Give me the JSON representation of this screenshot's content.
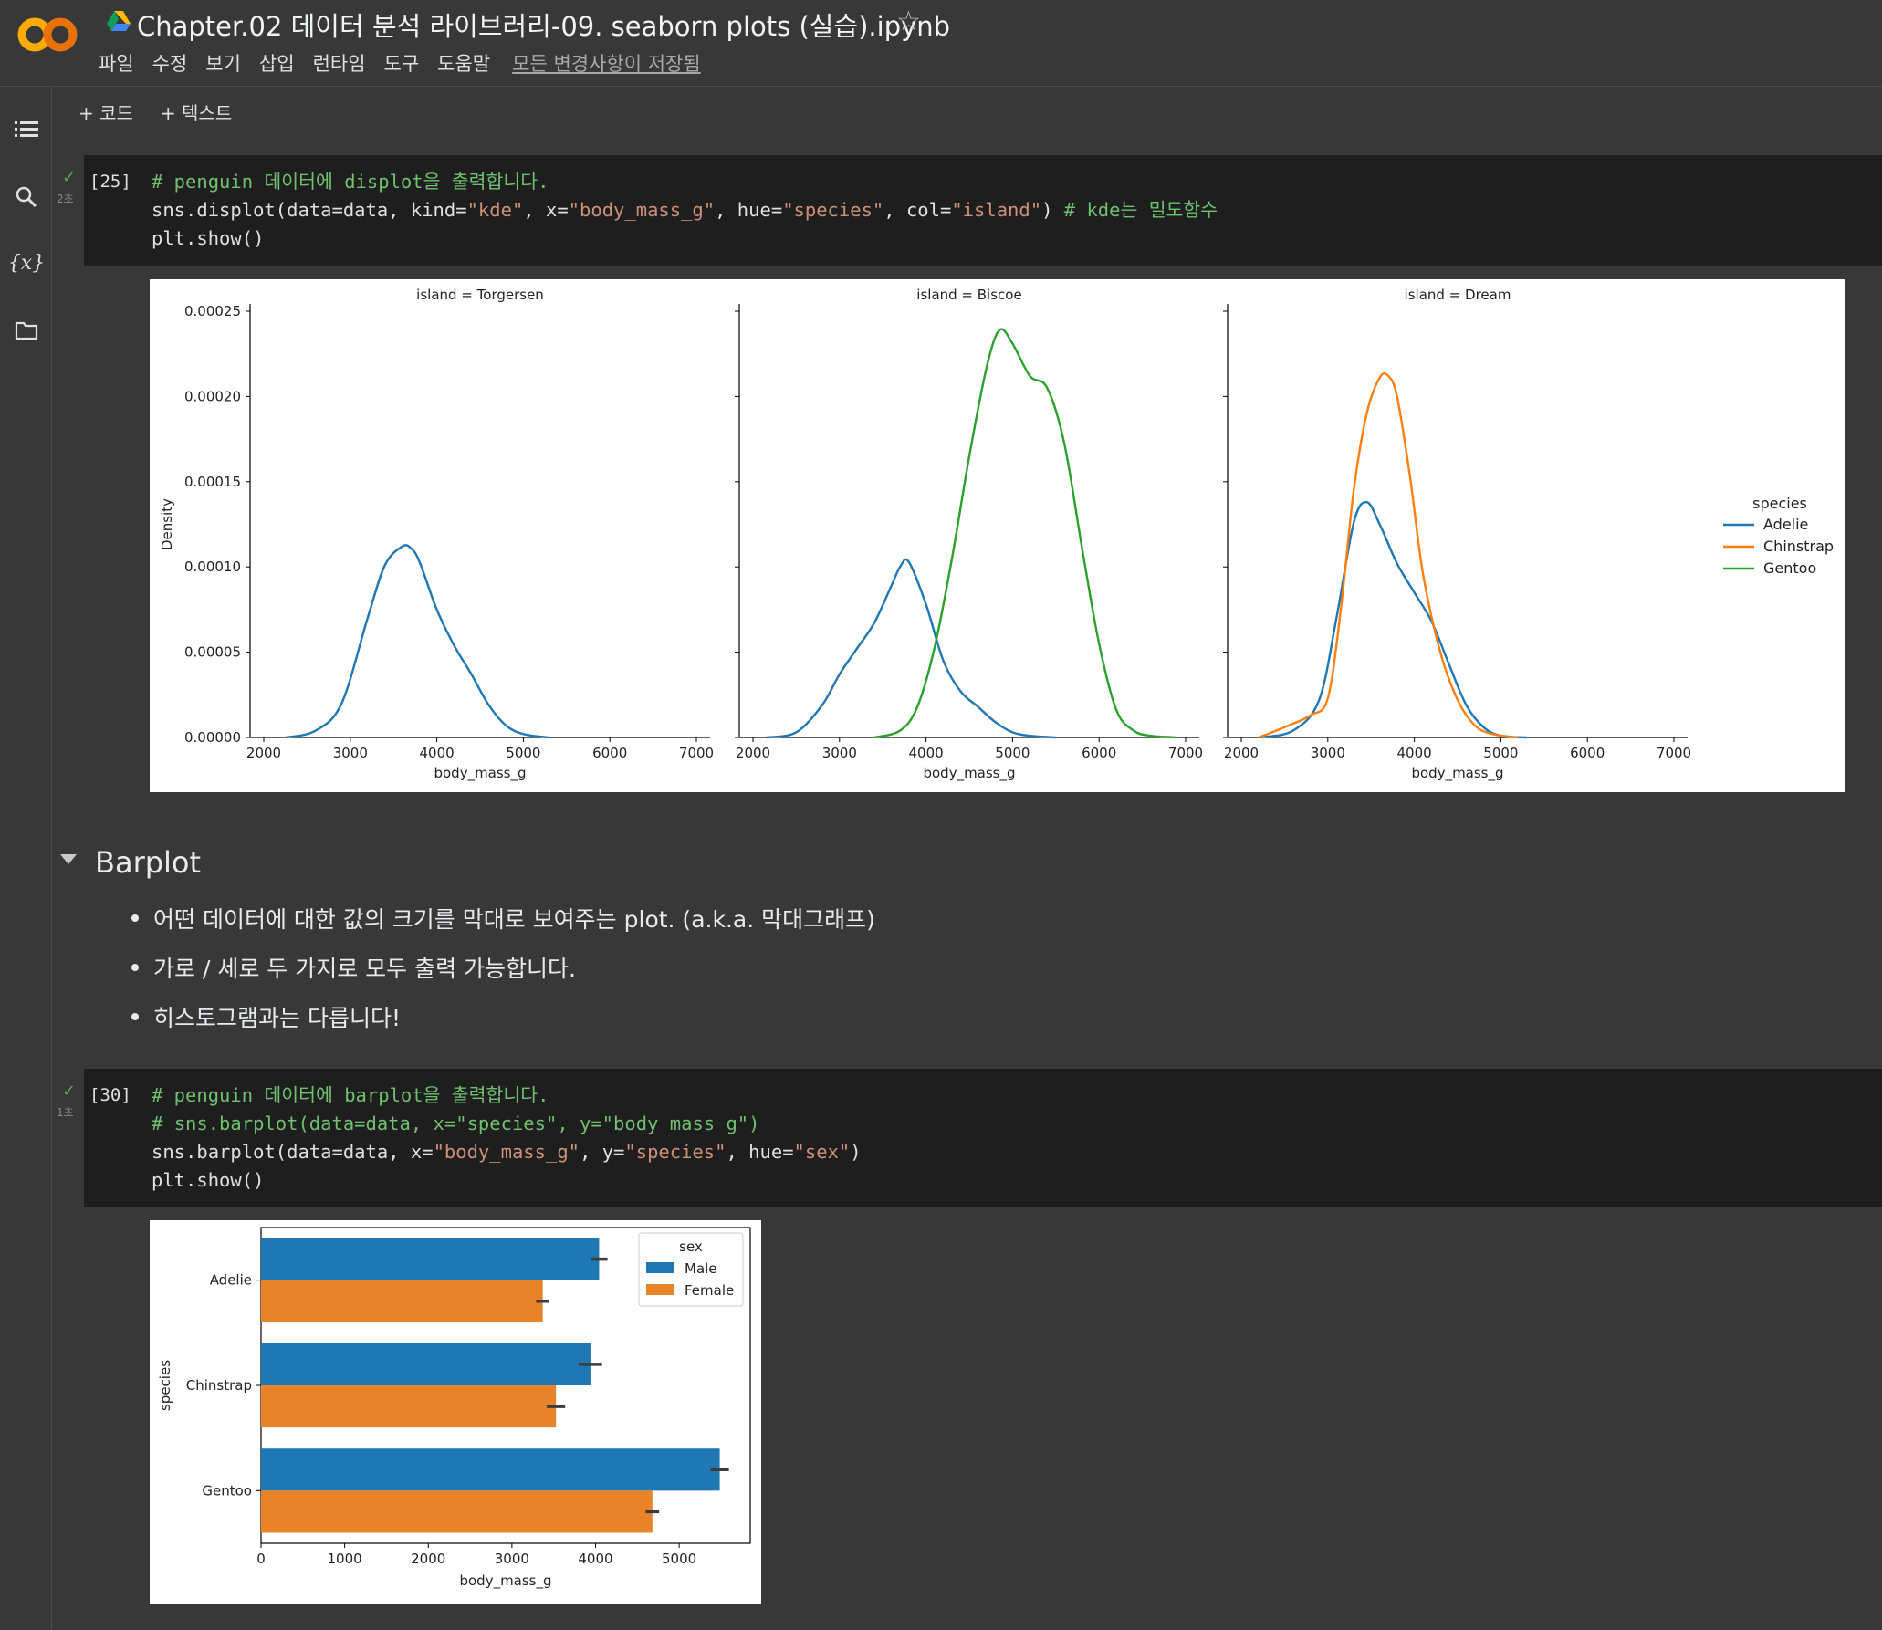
{
  "header": {
    "title": "Chapter.02 데이터 분석 라이브러리-09. seaborn plots (실습).ipynb",
    "menu": [
      "파일",
      "수정",
      "보기",
      "삽입",
      "런타임",
      "도구",
      "도움말"
    ],
    "saved_status": "모든 변경사항이 저장됨"
  },
  "toolbar": {
    "add_code": "+ 코드",
    "add_text": "+ 텍스트"
  },
  "cells": [
    {
      "exec_count": "[25]",
      "runtime": "2초",
      "lines": [
        "# penguin 데이터에 displot을 출력합니다.",
        "sns.displot(data=data, kind=\"kde\", x=\"body_mass_g\", hue=\"species\", col=\"island\") # kde는 밀도함수",
        "plt.show()"
      ]
    },
    {
      "exec_count": "[30]",
      "runtime": "1초",
      "lines": [
        "# penguin 데이터에 barplot을 출력합니다.",
        "# sns.barplot(data=data, x=\"species\", y=\"body_mass_g\")",
        "sns.barplot(data=data, x=\"body_mass_g\", y=\"species\", hue=\"sex\")",
        "plt.show()"
      ]
    }
  ],
  "section": {
    "title": "Barplot",
    "bullets": [
      "어떤 데이터에 대한 값의 크기를 막대로 보여주는 plot. (a.k.a. 막대그래프)",
      "가로 / 세로 두 가지로 모두 출력 가능합니다.",
      "히스토그램과는 다릅니다!"
    ]
  },
  "chart_data": [
    {
      "type": "line",
      "subplot_titles": [
        "island = Torgersen",
        "island = Biscoe",
        "island = Dream"
      ],
      "xlabel": "body_mass_g",
      "ylabel": "Density",
      "xlim": [
        2000,
        7000
      ],
      "ylim": [
        0,
        0.00025
      ],
      "xticks": [
        "2000",
        "3000",
        "4000",
        "5000",
        "6000",
        "7000"
      ],
      "yticks": [
        "0.00000",
        "0.00005",
        "0.00010",
        "0.00015",
        "0.00020",
        "0.00025"
      ],
      "legend": {
        "title": "species",
        "position": "right",
        "entries": [
          "Adelie",
          "Chinstrap",
          "Gentoo"
        ]
      },
      "colors": {
        "Adelie": "#1f77b4",
        "Chinstrap": "#ff7f0e",
        "Gentoo": "#2ca02c"
      },
      "panels": [
        {
          "island": "Torgersen",
          "series": [
            {
              "name": "Adelie",
              "x": [
                2250,
                2600,
                2900,
                3200,
                3400,
                3600,
                3700,
                3800,
                4000,
                4200,
                4400,
                4600,
                4800,
                5000,
                5300
              ],
              "y": [
                0.0,
                4e-06,
                2e-05,
                7e-05,
                0.000101,
                0.000112,
                0.000111,
                0.000103,
                7.5e-05,
                5.4e-05,
                3.7e-05,
                1.9e-05,
                7e-06,
                2e-06,
                0.0
              ]
            }
          ]
        },
        {
          "island": "Biscoe",
          "series": [
            {
              "name": "Adelie",
              "x": [
                2150,
                2500,
                2800,
                3000,
                3200,
                3400,
                3600,
                3700,
                3800,
                4000,
                4200,
                4400,
                4600,
                4800,
                5000,
                5200,
                5500
              ],
              "y": [
                0.0,
                3e-06,
                1.9e-05,
                3.7e-05,
                5.2e-05,
                6.7e-05,
                8.9e-05,
                0.0001,
                0.000103,
                7.8e-05,
                4.5e-05,
                2.7e-05,
                1.8e-05,
                9e-06,
                3e-06,
                1e-06,
                0.0
              ]
            },
            {
              "name": "Gentoo",
              "x": [
                3400,
                3700,
                3900,
                4100,
                4300,
                4500,
                4700,
                4850,
                5000,
                5200,
                5400,
                5600,
                5800,
                6000,
                6200,
                6400,
                6600,
                6900
              ],
              "y": [
                0.0,
                4e-06,
                1.8e-05,
                5.3e-05,
                0.000105,
                0.000165,
                0.000217,
                0.000239,
                0.000231,
                0.000212,
                0.000205,
                0.000172,
                0.000112,
                5.5e-05,
                1.6e-05,
                4e-06,
                1e-06,
                0.0
              ]
            }
          ]
        },
        {
          "island": "Dream",
          "series": [
            {
              "name": "Adelie",
              "x": [
                2200,
                2600,
                2900,
                3100,
                3300,
                3450,
                3600,
                3800,
                4000,
                4200,
                4400,
                4600,
                4800,
                5000,
                5300
              ],
              "y": [
                0.0,
                4e-06,
                2.2e-05,
                7e-05,
                0.000126,
                0.000138,
                0.000125,
                0.000102,
                8.5e-05,
                6.8e-05,
                4.3e-05,
                1.9e-05,
                6e-06,
                1e-06,
                0.0
              ]
            },
            {
              "name": "Chinstrap",
              "x": [
                2200,
                2500,
                2800,
                3000,
                3150,
                3300,
                3450,
                3600,
                3700,
                3800,
                3950,
                4100,
                4300,
                4500,
                4700,
                4900,
                5200
              ],
              "y": [
                0.0,
                6e-06,
                1.3e-05,
                2.3e-05,
                7.5e-05,
                0.000145,
                0.00019,
                0.000211,
                0.000212,
                0.0002,
                0.000153,
                9.6e-05,
                5e-05,
                2.2e-05,
                7e-06,
                2e-06,
                0.0
              ]
            }
          ]
        }
      ]
    },
    {
      "type": "bar",
      "orientation": "horizontal",
      "categories": [
        "Adelie",
        "Chinstrap",
        "Gentoo"
      ],
      "series": [
        {
          "name": "Male",
          "values": [
            4043,
            3939,
            5485
          ],
          "errors": [
            100,
            140,
            110
          ],
          "color": "#1f77b4"
        },
        {
          "name": "Female",
          "values": [
            3369,
            3527,
            4680
          ],
          "errors": [
            80,
            110,
            80
          ],
          "color": "#e8832a"
        }
      ],
      "xlabel": "body_mass_g",
      "ylabel": "species",
      "xlim": [
        0,
        5850
      ],
      "xticks": [
        "0",
        "1000",
        "2000",
        "3000",
        "4000",
        "5000"
      ],
      "legend": {
        "title": "sex",
        "position": "upper right",
        "entries": [
          "Male",
          "Female"
        ]
      }
    }
  ]
}
